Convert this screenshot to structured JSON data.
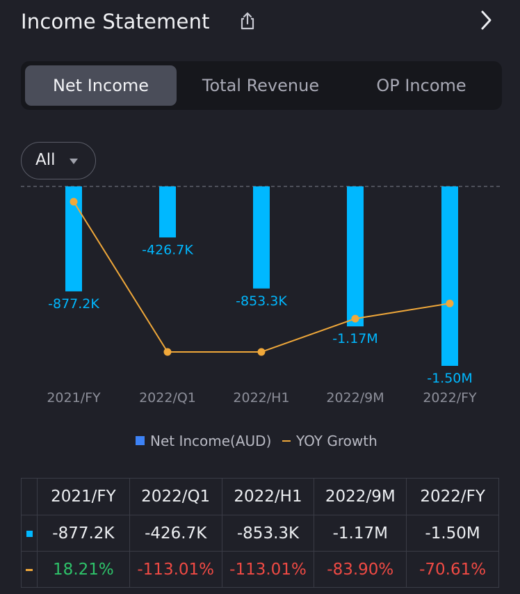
{
  "header": {
    "title": "Income Statement"
  },
  "tabs": [
    {
      "label": "Net Income",
      "active": true
    },
    {
      "label": "Total Revenue",
      "active": false
    },
    {
      "label": "OP Income",
      "active": false
    }
  ],
  "filter": {
    "label": "All"
  },
  "colors": {
    "bar": "#00b8ff",
    "line": "#f0a83a",
    "positive": "#2ec36a",
    "negative": "#f04a44",
    "legend_bar": "#3d82f6"
  },
  "legend": {
    "bar_label": "Net Income(AUD)",
    "line_label": "YOY Growth"
  },
  "chart_data": {
    "type": "bar",
    "categories": [
      "2021/FY",
      "2022/Q1",
      "2022/H1",
      "2022/9M",
      "2022/FY"
    ],
    "series": [
      {
        "name": "Net Income(AUD)",
        "type": "bar",
        "values": [
          -877.2,
          -426.7,
          -853.3,
          -1170,
          -1500
        ],
        "unit": "K",
        "labels": [
          "-877.2K",
          "-426.7K",
          "-853.3K",
          "-1.17M",
          "-1.50M"
        ]
      },
      {
        "name": "YOY Growth",
        "type": "line",
        "values": [
          18.21,
          -113.01,
          -113.01,
          -83.9,
          -70.61
        ],
        "unit": "%"
      }
    ],
    "bar_ylim": [
      -1500,
      0
    ],
    "line_ylim": [
      -113.01,
      18.21
    ],
    "legend_position": "bottom"
  },
  "table": {
    "headers": [
      "2021/FY",
      "2022/Q1",
      "2022/H1",
      "2022/9M",
      "2022/FY"
    ],
    "net_income": [
      "-877.2K",
      "-426.7K",
      "-853.3K",
      "-1.17M",
      "-1.50M"
    ],
    "yoy": [
      "18.21%",
      "-113.01%",
      "-113.01%",
      "-83.90%",
      "-70.61%"
    ]
  }
}
